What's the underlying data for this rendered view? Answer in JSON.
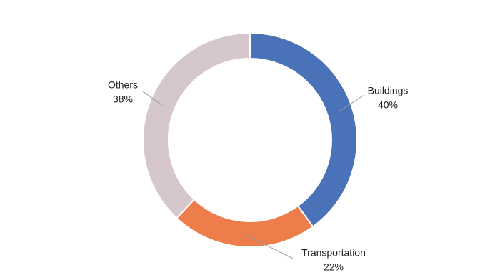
{
  "chart_data": {
    "type": "donut",
    "categories": [
      "Buildings",
      "Transportation",
      "Others"
    ],
    "values": [
      40,
      22,
      38
    ],
    "value_labels": [
      "40%",
      "22%",
      "38%"
    ],
    "colors": [
      "#4a72b8",
      "#ed7d4b",
      "#d6c7cc"
    ]
  }
}
